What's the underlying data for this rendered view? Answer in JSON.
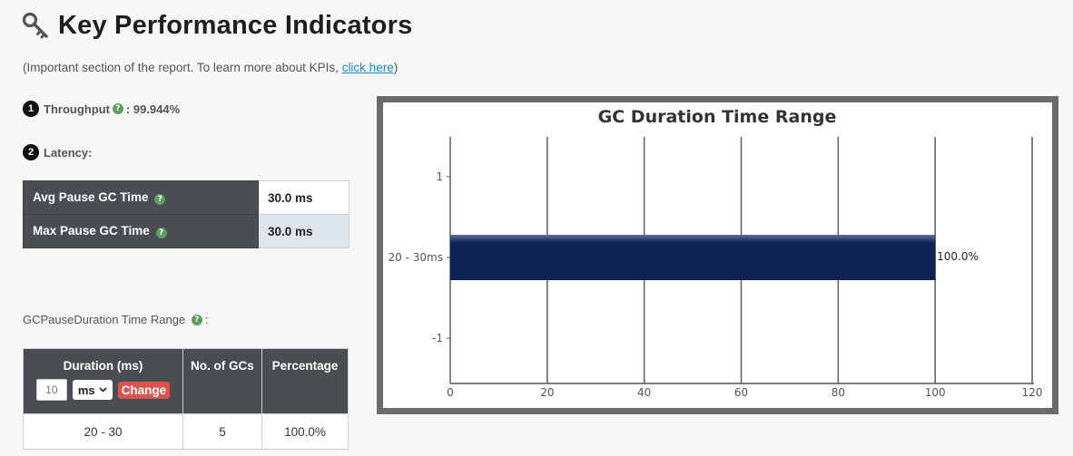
{
  "header": {
    "title": "Key Performance Indicators",
    "subtitle_prefix": "(Important section of the report. To learn more about KPIs, ",
    "subtitle_link": "click here",
    "subtitle_suffix": ")"
  },
  "throughput": {
    "badge": "1",
    "label": "Throughput",
    "help": "?",
    "value": ": 99.944%"
  },
  "latency": {
    "badge": "2",
    "label": "Latency:",
    "rows": [
      {
        "label": "Avg Pause GC Time",
        "value": "30.0 ms"
      },
      {
        "label": "Max Pause GC Time",
        "value": "30.0 ms"
      }
    ]
  },
  "gc_pause": {
    "label": "GCPauseDuration Time Range",
    "suffix": ":",
    "columns": {
      "duration": "Duration (ms)",
      "count": "No. of GCs",
      "percentage": "Percentage"
    },
    "input_placeholder": "10",
    "unit_selected": "ms",
    "change_label": "Change",
    "rows": [
      {
        "duration": "20 - 30",
        "count": "5",
        "percentage": "100.0%"
      }
    ]
  },
  "colors": {
    "bar": "#0e2353",
    "header_bg": "#4a4d52",
    "help": "#5f9b63",
    "change": "#d9534f",
    "link": "#1a8ac9"
  },
  "chart_data": {
    "type": "bar",
    "orientation": "horizontal",
    "title": "GC Duration Time Range",
    "categories": [
      "20 - 30ms"
    ],
    "y_ticks": [
      "1",
      "20 - 30ms",
      "-1"
    ],
    "values": [
      100.0
    ],
    "data_labels": [
      "100.0%"
    ],
    "xlim": [
      0,
      120
    ],
    "x_ticks": [
      0,
      20,
      40,
      60,
      80,
      100,
      120
    ],
    "grid": true
  }
}
